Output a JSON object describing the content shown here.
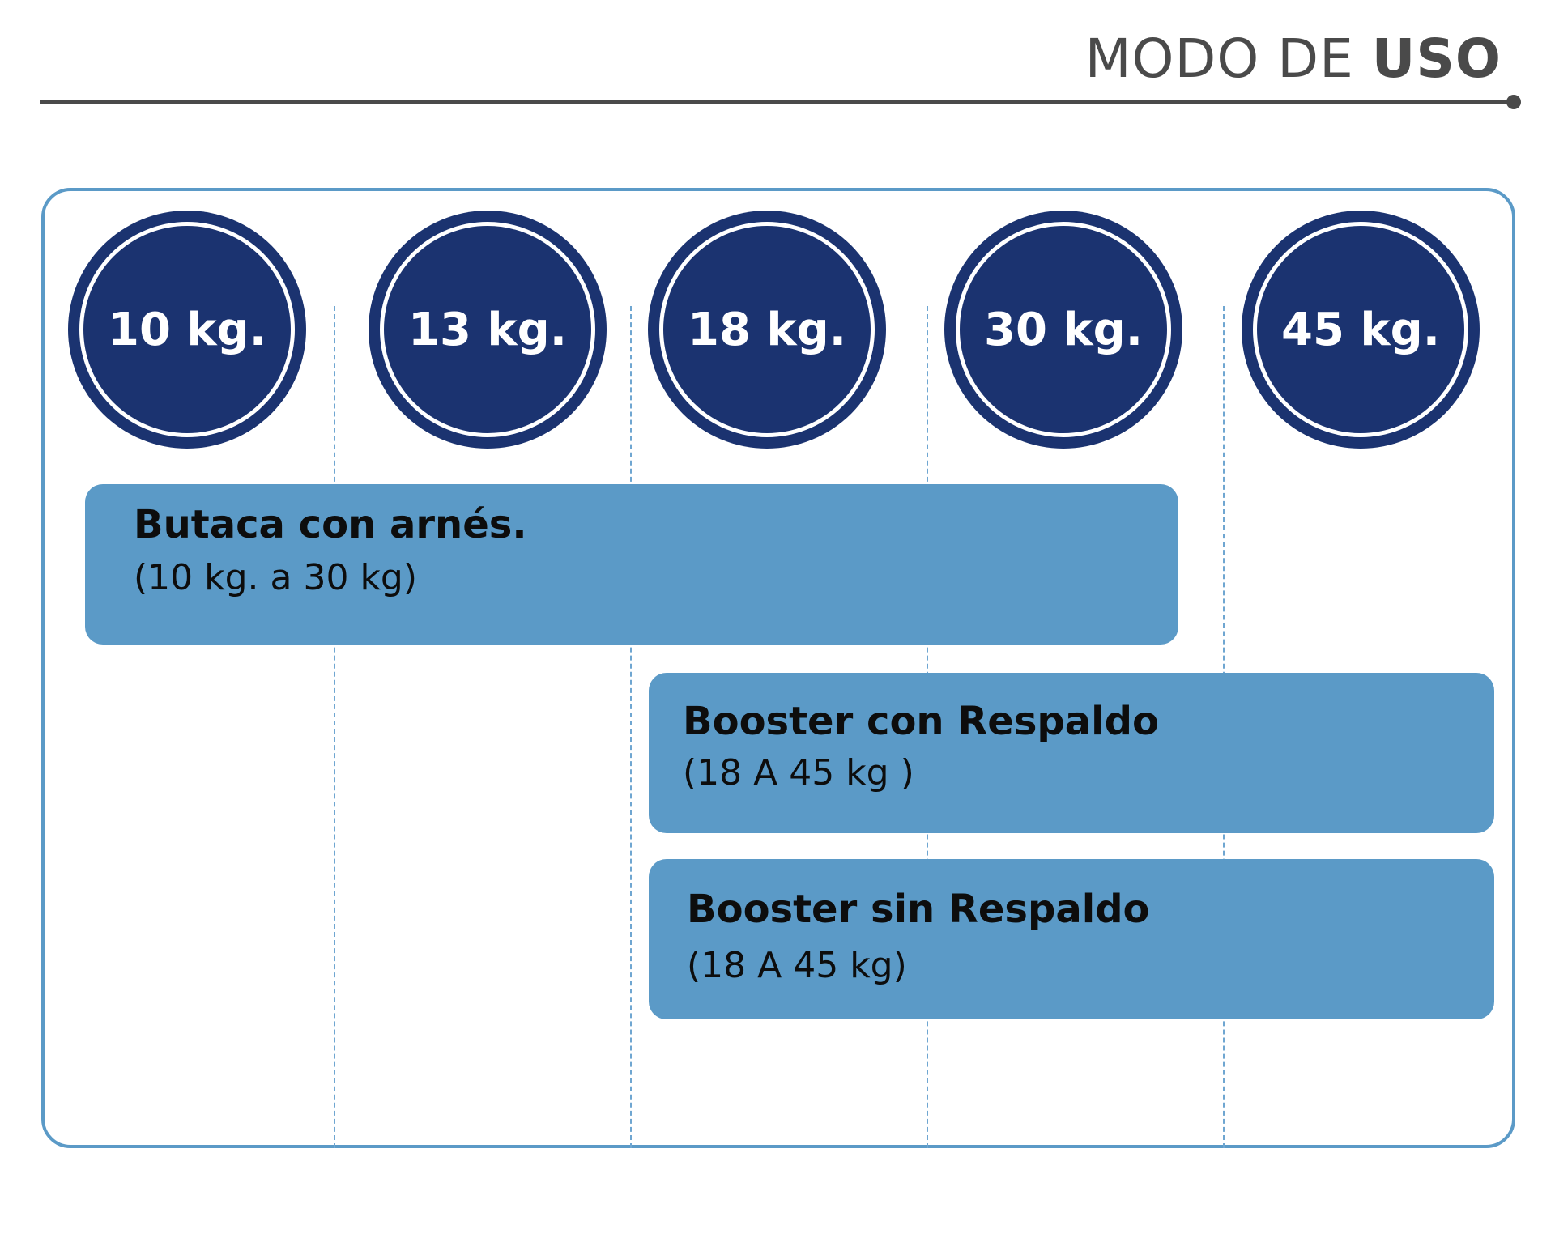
{
  "header": {
    "title_light": "MODO DE ",
    "title_bold": "USO"
  },
  "weights": [
    "10 kg.",
    "13 kg.",
    "18 kg.",
    "30 kg.",
    "45 kg."
  ],
  "bars": [
    {
      "title": "Butaca con arnés.",
      "subtitle": "(10 kg. a 30 kg)"
    },
    {
      "title": "Booster con Respaldo",
      "subtitle": "(18 A 45 kg )"
    },
    {
      "title": "Booster sin Respaldo",
      "subtitle": "(18 A 45 kg)"
    }
  ],
  "colors": {
    "circle": "#1b3370",
    "bar": "#5b9ac7",
    "frame": "#5b9ac7",
    "header": "#4a4a4a"
  }
}
